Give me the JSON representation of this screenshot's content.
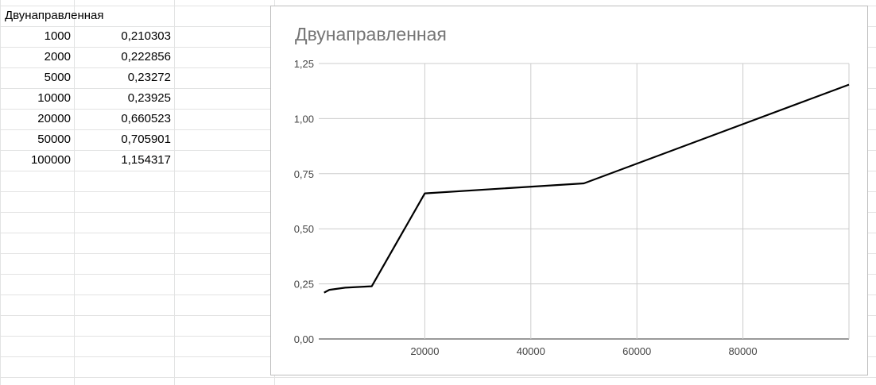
{
  "sheet": {
    "header": "Двунаправленная",
    "rows": [
      {
        "n": "1000",
        "v": "0,210303"
      },
      {
        "n": "2000",
        "v": "0,222856"
      },
      {
        "n": "5000",
        "v": "0,23272"
      },
      {
        "n": "10000",
        "v": "0,23925"
      },
      {
        "n": "20000",
        "v": "0,660523"
      },
      {
        "n": "50000",
        "v": "0,705901"
      },
      {
        "n": "100000",
        "v": "1,154317"
      }
    ]
  },
  "chart_data": {
    "type": "line",
    "title": "Двунаправленная",
    "x": [
      1000,
      2000,
      5000,
      10000,
      20000,
      50000,
      100000
    ],
    "series": [
      {
        "values": [
          0.210303,
          0.222856,
          0.23272,
          0.23925,
          0.660523,
          0.705901,
          1.154317
        ]
      }
    ],
    "xlim": [
      0,
      100000
    ],
    "ylim": [
      0,
      1.25
    ],
    "x_ticks": [
      "20000",
      "40000",
      "60000",
      "80000"
    ],
    "y_ticks": [
      "0,00",
      "0,25",
      "0,50",
      "0,75",
      "1,00",
      "1,25"
    ],
    "grid": true,
    "line_color": "#000000",
    "grid_color": "#cccccc",
    "xlabel": "",
    "ylabel": ""
  }
}
